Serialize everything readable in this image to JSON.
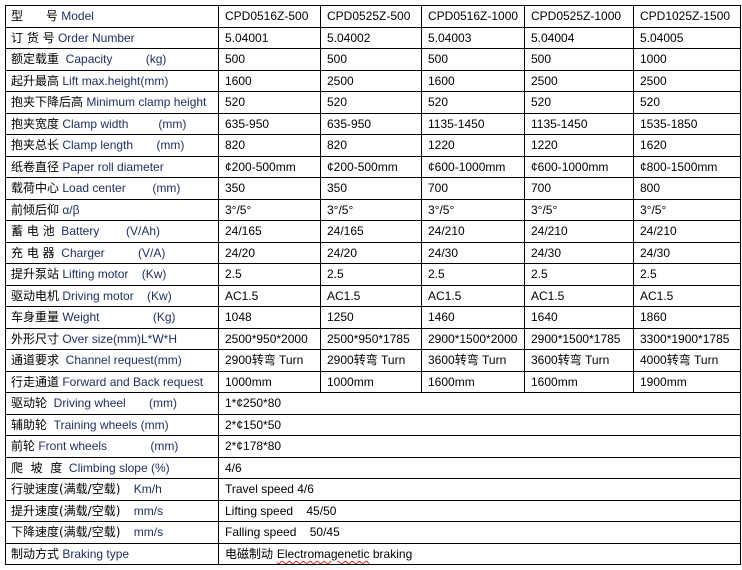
{
  "rows": [
    {
      "cn": "型      号",
      "en": " Model",
      "values": [
        "CPD0516Z-500",
        "CPD0525Z-500",
        "CPD0516Z-1000",
        "CPD0525Z-1000",
        "CPD1025Z-1500"
      ]
    },
    {
      "cn": "订 货 号",
      "en": " Order Number",
      "values": [
        "5.04001",
        "5.04002",
        "5.04003",
        "5.04004",
        "5.04005"
      ]
    },
    {
      "cn": "额定载重",
      "en": "  Capacity          (kg)",
      "values": [
        "500",
        "500",
        "500",
        "500",
        "1000"
      ]
    },
    {
      "cn": "起升最高",
      "en": " Lift max.height(mm)",
      "values": [
        "1600",
        "2500",
        "1600",
        "2500",
        "2500"
      ]
    },
    {
      "cn": "抱夹下降后高",
      "en": " Minimum clamp height",
      "values": [
        "520",
        "520",
        "520",
        "520",
        "520"
      ]
    },
    {
      "cn": "抱夹宽度",
      "en": " Clamp width         (mm)",
      "values": [
        "635-950",
        "635-950",
        "1135-1450",
        "1135-1450",
        "1535-1850"
      ]
    },
    {
      "cn": "抱夹总长",
      "en": " Clamp length       (mm)",
      "values": [
        "820",
        "820",
        "1220",
        "1220",
        "1620"
      ]
    },
    {
      "cn": "纸卷直径",
      "en": " Paper roll diameter",
      "values": [
        "¢200-500mm",
        "¢200-500mm",
        "¢600-1000mm",
        "¢600-1000mm",
        "¢800-1500mm"
      ]
    },
    {
      "cn": "载荷中心",
      "en": " Load center        (mm)",
      "values": [
        "350",
        "350",
        "700",
        "700",
        "800"
      ]
    },
    {
      "cn": "前倾后仰",
      "en": " α/β",
      "values": [
        "3°/5°",
        "3°/5°",
        "3°/5°",
        "3°/5°",
        "3°/5°"
      ]
    },
    {
      "cn": "蓄 电 池",
      "en": "  Battery        (V/Ah)",
      "values": [
        "24/165",
        "24/165",
        "24/210",
        "24/210",
        "24/210"
      ]
    },
    {
      "cn": "充 电 器",
      "en": "  Charger          (V/A)",
      "values": [
        "24/20",
        "24/20",
        "24/30",
        "24/30",
        "24/30"
      ]
    },
    {
      "cn": "提升泵站",
      "en": " Lifting motor    (Kw)",
      "values": [
        "2.5",
        "2.5",
        "2.5",
        "2.5",
        "2.5"
      ]
    },
    {
      "cn": "驱动电机",
      "en": " Driving motor    (Kw)",
      "values": [
        "AC1.5",
        "AC1.5",
        "AC1.5",
        "AC1.5",
        "AC1.5"
      ]
    },
    {
      "cn": "车身重量",
      "en": " Weight                (Kg)",
      "values": [
        "1048",
        "1250",
        "1460",
        "1640",
        "1860"
      ]
    },
    {
      "cn": "外形尺寸",
      "en": " Over size(mm)L*W*H",
      "values": [
        "2500*950*2000",
        "2500*950*1785",
        "2900*1500*2000",
        "2900*1500*1785",
        "3300*1900*1785"
      ]
    },
    {
      "cn": "通道要求",
      "en": "  Channel request(mm)",
      "values": [
        "2900转弯 Turn",
        "2900转弯 Turn",
        "3600转弯 Turn",
        "3600转弯 Turn",
        "4000转弯 Turn"
      ]
    },
    {
      "cn": "行走通道",
      "en": " Forward and Back request",
      "values": [
        "1000mm",
        "1000mm",
        "1600mm",
        "1600mm",
        "1900mm"
      ]
    }
  ],
  "shared_rows": [
    {
      "cn": "驱动轮",
      "en": "  Driving wheel       (mm)",
      "value": "1*¢250*80"
    },
    {
      "cn": "辅助轮",
      "en": "  Training wheels (mm)",
      "value": "2*¢150*50"
    },
    {
      "cn": "前轮",
      "en": " Front wheels             (mm)",
      "value": "2*¢178*80"
    },
    {
      "cn": "爬  坡  度",
      "en": "  Climbing slope (%)",
      "value": "4/6"
    },
    {
      "cn": "行驶速度(满载/空载)",
      "en": "    Km/h",
      "value": "Travel speed 4/6"
    },
    {
      "cn": "提升速度(满载/空载)",
      "en": "    mm/s",
      "value": "Lifting speed    45/50"
    },
    {
      "cn": "下降速度(满载/空载)",
      "en": "    mm/s",
      "value": "Falling speed    50/45"
    }
  ],
  "braking": {
    "cn": "制动方式",
    "en": " Braking type",
    "value_cn": "电磁制动 ",
    "value_en": "Electromagenetic",
    " value_rest": " braking",
    "value_rest": " braking"
  }
}
